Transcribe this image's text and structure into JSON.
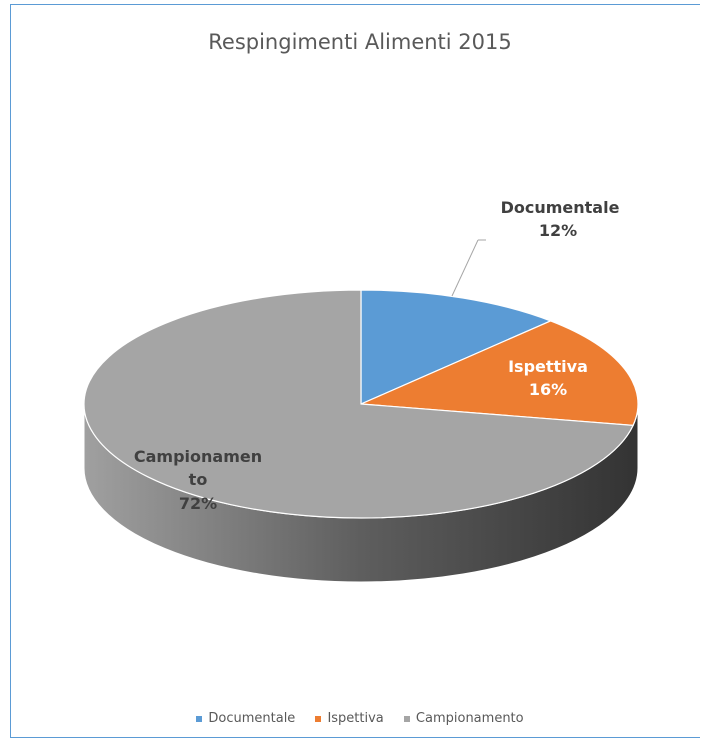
{
  "chart_data": {
    "type": "pie",
    "title": "Respingimenti Alimenti 2015",
    "categories": [
      "Documentale",
      "Ispettiva",
      "Campionamento"
    ],
    "values": [
      12,
      16,
      72
    ],
    "data_labels": [
      {
        "name": "Documentale",
        "value": "12%"
      },
      {
        "name": "Ispettiva",
        "value": "16%"
      },
      {
        "name": "Campionamen\nto",
        "lines": [
          "Campionamen",
          "to"
        ],
        "value": "72%"
      }
    ],
    "colors": [
      "#5b9bd5",
      "#ed7d31",
      "#a5a5a5"
    ],
    "legend": {
      "position": "bottom",
      "entries": [
        "Documentale",
        "Ispettiva",
        "Campionamento"
      ]
    },
    "style": "3d-pie"
  }
}
